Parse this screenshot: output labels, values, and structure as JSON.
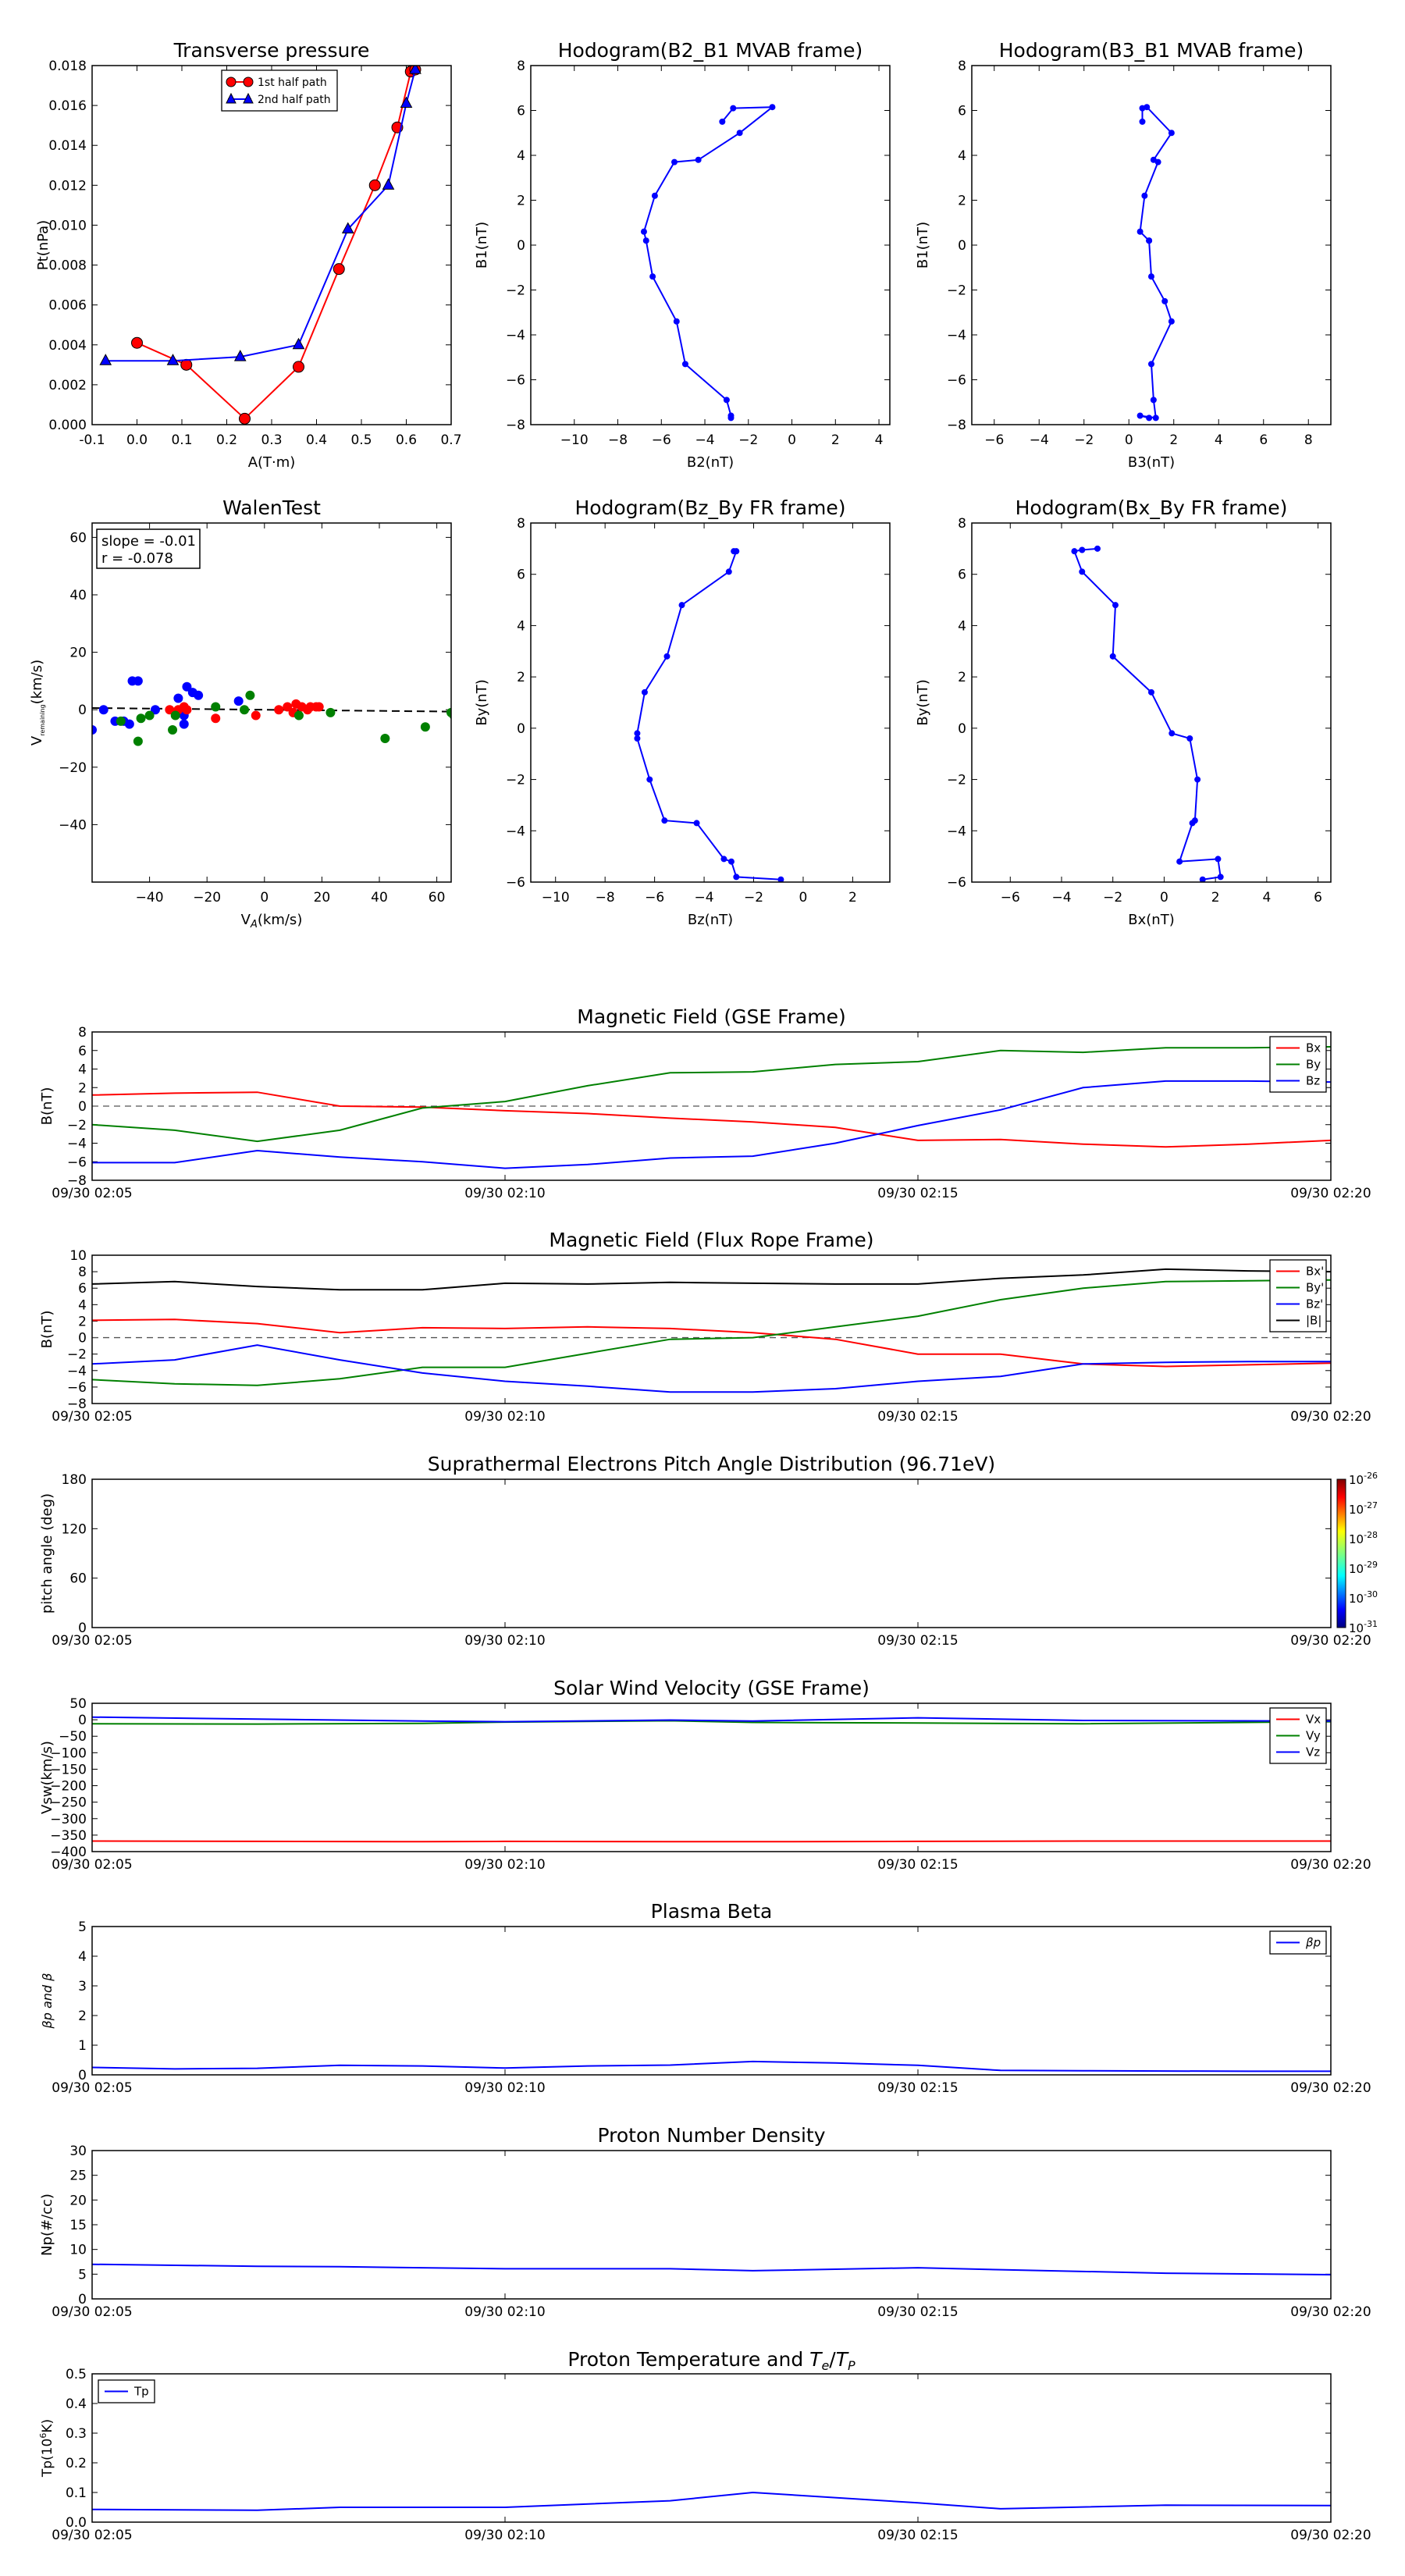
{
  "chart_data": [
    {
      "id": "transverse_pressure",
      "type": "line",
      "title": "Transverse pressure",
      "xlabel": "A(T·m)",
      "ylabel": "Pt(nPa)",
      "xlim": [
        -0.1,
        0.7
      ],
      "ylim": [
        0,
        0.018
      ],
      "xticks": [
        "-0.1",
        "0.0",
        "0.1",
        "0.2",
        "0.3",
        "0.4",
        "0.5",
        "0.6",
        "0.7"
      ],
      "yticks": [
        "0.000",
        "0.002",
        "0.004",
        "0.006",
        "0.008",
        "0.010",
        "0.012",
        "0.014",
        "0.016",
        "0.018"
      ],
      "legend": {
        "position": "top-center",
        "entries": [
          "1st half path",
          "2nd half path"
        ]
      },
      "series": [
        {
          "name": "1st half path",
          "color": "#ff0000",
          "marker": "circle",
          "x": [
            0.0,
            0.11,
            0.24,
            0.36,
            0.45,
            0.53,
            0.58,
            0.61,
            0.62
          ],
          "y": [
            0.0041,
            0.003,
            0.0003,
            0.0029,
            0.0078,
            0.012,
            0.0149,
            0.0177,
            0.0178
          ]
        },
        {
          "name": "2nd half path",
          "color": "#0000ff",
          "marker": "triangle",
          "x": [
            -0.07,
            0.08,
            0.23,
            0.36,
            0.47,
            0.56,
            0.6,
            0.62
          ],
          "y": [
            0.0032,
            0.0032,
            0.0034,
            0.004,
            0.0098,
            0.012,
            0.0161,
            0.0178
          ]
        }
      ]
    },
    {
      "id": "hodo_b2b1",
      "type": "line",
      "title": "Hodogram(B2_B1 MVAB frame)",
      "xlabel": "B2(nT)",
      "ylabel": "B1(nT)",
      "xlim": [
        -12,
        4.5
      ],
      "ylim": [
        -8,
        8
      ],
      "xticks": [
        "−10",
        "−8",
        "−6",
        "−4",
        "−2",
        "0",
        "2",
        "4"
      ],
      "yticks": [
        "−8",
        "−6",
        "−4",
        "−2",
        "0",
        "2",
        "4",
        "6",
        "8"
      ],
      "series": [
        {
          "color": "#0000ff",
          "marker": "dot",
          "x": [
            -3.2,
            -2.7,
            -0.9,
            -2.4,
            -4.3,
            -5.4,
            -6.3,
            -6.8,
            -6.7,
            -6.4,
            -5.3,
            -4.9,
            -3.0,
            -2.8,
            -2.8
          ],
          "y": [
            5.5,
            6.1,
            6.15,
            5.0,
            3.8,
            3.7,
            2.2,
            0.6,
            0.2,
            -1.4,
            -3.4,
            -5.3,
            -6.9,
            -7.6,
            -7.7
          ]
        }
      ]
    },
    {
      "id": "hodo_b3b1",
      "type": "line",
      "title": "Hodogram(B3_B1 MVAB frame)",
      "xlabel": "B3(nT)",
      "ylabel": "B1(nT)",
      "xlim": [
        -7,
        9
      ],
      "ylim": [
        -8,
        8
      ],
      "xticks": [
        "−6",
        "−4",
        "−2",
        "0",
        "2",
        "4",
        "6",
        "8"
      ],
      "yticks": [
        "−8",
        "−6",
        "−4",
        "−2",
        "0",
        "2",
        "4",
        "6",
        "8"
      ],
      "series": [
        {
          "color": "#0000ff",
          "marker": "dot",
          "x": [
            0.6,
            0.6,
            0.8,
            1.9,
            1.1,
            1.3,
            0.7,
            0.5,
            0.9,
            0.9,
            1.0,
            1.6,
            1.9,
            1.0,
            1.1,
            1.2,
            0.5,
            0.9
          ],
          "y": [
            5.5,
            6.1,
            6.15,
            5.0,
            3.8,
            3.7,
            2.2,
            0.6,
            0.2,
            0.2,
            -1.4,
            -2.5,
            -3.4,
            -5.3,
            -6.9,
            -7.7,
            -7.6,
            -7.7
          ]
        }
      ]
    },
    {
      "id": "walen_test",
      "type": "scatter",
      "title": "WalenTest",
      "xlabel": "V_A(km/s)",
      "ylabel": "V_remaining(km/s)",
      "xlim": [
        -60,
        65
      ],
      "ylim": [
        -60,
        65
      ],
      "xticks": [
        "−40",
        "−20",
        "0",
        "20",
        "40",
        "60"
      ],
      "yticks": [
        "−40",
        "−20",
        "0",
        "20",
        "40",
        "60"
      ],
      "annotation": [
        "slope = -0.01",
        "r = -0.078"
      ],
      "fit_line": {
        "slope": -0.01,
        "intercept": 0,
        "color": "#000000",
        "style": "dashed"
      },
      "series": [
        {
          "color": "#0000ff",
          "x": [
            -60,
            -56,
            -52,
            -49,
            -47,
            -46,
            -44,
            -38,
            -30,
            -28,
            -28,
            -27,
            -25,
            -23,
            -9
          ],
          "y": [
            -7,
            0,
            -4,
            -4,
            -5,
            10,
            10,
            0,
            4,
            -2,
            -5,
            8,
            6,
            5,
            3
          ]
        },
        {
          "color": "#ff0000",
          "x": [
            -33,
            -30,
            -28,
            -27,
            -17,
            -3,
            5,
            8,
            10,
            11,
            13,
            15,
            16,
            18,
            19
          ],
          "y": [
            0,
            0,
            1,
            0,
            -3,
            -2,
            0,
            1,
            -1,
            2,
            1,
            0,
            1,
            1,
            1
          ]
        },
        {
          "color": "#008000",
          "x": [
            -50,
            -44,
            -43,
            -40,
            -32,
            -31,
            -17,
            -7,
            -5,
            12,
            23,
            42,
            56,
            65,
            66
          ],
          "y": [
            -4,
            -11,
            -3,
            -2,
            -7,
            -2,
            1,
            0,
            5,
            -2,
            -1,
            -10,
            -6,
            -1,
            -2
          ]
        }
      ]
    },
    {
      "id": "hodo_bzby",
      "type": "line",
      "title": "Hodogram(Bz_By FR frame)",
      "xlabel": "Bz(nT)",
      "ylabel": "By(nT)",
      "xlim": [
        -11,
        3.5
      ],
      "ylim": [
        -6,
        8
      ],
      "xticks": [
        "−10",
        "−8",
        "−6",
        "−4",
        "−2",
        "0",
        "2"
      ],
      "yticks": [
        "−6",
        "−4",
        "−2",
        "0",
        "2",
        "4",
        "6",
        "8"
      ],
      "series": [
        {
          "color": "#0000ff",
          "marker": "dot",
          "x": [
            -2.8,
            -2.7,
            -3.0,
            -4.9,
            -5.5,
            -6.4,
            -6.7,
            -6.7,
            -6.2,
            -5.6,
            -4.3,
            -3.2,
            -2.9,
            -2.7,
            -0.9
          ],
          "y": [
            6.9,
            6.9,
            6.1,
            4.8,
            2.8,
            1.4,
            -0.2,
            -0.4,
            -2.0,
            -3.6,
            -3.7,
            -5.1,
            -5.2,
            -5.8,
            -5.9
          ]
        }
      ]
    },
    {
      "id": "hodo_bxby",
      "type": "line",
      "title": "Hodogram(Bx_By FR frame)",
      "xlabel": "Bx(nT)",
      "ylabel": "By(nT)",
      "xlim": [
        -7.5,
        6.5
      ],
      "ylim": [
        -6,
        8
      ],
      "xticks": [
        "−6",
        "−4",
        "−2",
        "0",
        "2",
        "4",
        "6"
      ],
      "yticks": [
        "−6",
        "−4",
        "−2",
        "0",
        "2",
        "4",
        "6",
        "8"
      ],
      "series": [
        {
          "color": "#0000ff",
          "marker": "dot",
          "x": [
            -2.6,
            -3.2,
            -3.5,
            -3.2,
            -1.9,
            -2.0,
            -0.5,
            0.3,
            1.0,
            1.3,
            1.2,
            1.1,
            0.6,
            2.1,
            2.2,
            1.5
          ],
          "y": [
            7.0,
            6.95,
            6.9,
            6.1,
            4.8,
            2.8,
            1.4,
            -0.2,
            -0.4,
            -2.0,
            -3.6,
            -3.7,
            -5.2,
            -5.1,
            -5.8,
            -5.9
          ]
        }
      ]
    },
    {
      "id": "mag_gse",
      "type": "line",
      "title": "Magnetic Field (GSE Frame)",
      "ylabel": "B(nT)",
      "ylim": [
        -8,
        8
      ],
      "yticks": [
        "−8",
        "−6",
        "−4",
        "−2",
        "0",
        "2",
        "4",
        "6",
        "8"
      ],
      "xticks": [
        "09/30 02:05",
        "09/30 02:10",
        "09/30 02:15",
        "09/30 02:20"
      ],
      "xlim_minutes": [
        5,
        20
      ],
      "zero_line": true,
      "legend": {
        "position": "top-right",
        "entries": [
          "Bx",
          "By",
          "Bz"
        ]
      },
      "x": [
        "02:05",
        "02:06",
        "02:07",
        "02:08",
        "02:09",
        "02:10",
        "02:11",
        "02:12",
        "02:13",
        "02:14",
        "02:15",
        "02:16",
        "02:17",
        "02:18",
        "02:19",
        "02:20"
      ],
      "series": [
        {
          "name": "Bx",
          "color": "#ff0000",
          "values": [
            1.2,
            1.4,
            1.5,
            0.0,
            -0.1,
            -0.5,
            -0.8,
            -1.3,
            -1.7,
            -2.3,
            -3.7,
            -3.6,
            -4.1,
            -4.4,
            -4.1,
            -3.7
          ]
        },
        {
          "name": "By",
          "color": "#008000",
          "values": [
            -2.0,
            -2.6,
            -3.8,
            -2.6,
            -0.2,
            0.5,
            2.2,
            3.6,
            3.7,
            4.5,
            4.8,
            6.0,
            5.8,
            6.3,
            6.3,
            6.4
          ]
        },
        {
          "name": "Bz",
          "color": "#0000ff",
          "values": [
            -6.1,
            -6.1,
            -4.8,
            -5.5,
            -6.0,
            -6.7,
            -6.3,
            -5.6,
            -5.4,
            -4.0,
            -2.1,
            -0.4,
            2.0,
            2.7,
            2.7,
            2.6
          ]
        }
      ]
    },
    {
      "id": "mag_fr",
      "type": "line",
      "title": "Magnetic Field (Flux Rope Frame)",
      "ylabel": "B(nT)",
      "ylim": [
        -8,
        10
      ],
      "yticks": [
        "−8",
        "−6",
        "−4",
        "−2",
        "0",
        "2",
        "4",
        "6",
        "8",
        "10"
      ],
      "xticks": [
        "09/30 02:05",
        "09/30 02:10",
        "09/30 02:15",
        "09/30 02:20"
      ],
      "xlim_minutes": [
        5,
        20
      ],
      "zero_line": true,
      "legend": {
        "position": "top-right",
        "entries": [
          "Bx'",
          "By'",
          "Bz'",
          "|B|"
        ]
      },
      "x": [
        "02:05",
        "02:06",
        "02:07",
        "02:08",
        "02:09",
        "02:10",
        "02:11",
        "02:12",
        "02:13",
        "02:14",
        "02:15",
        "02:16",
        "02:17",
        "02:18",
        "02:19",
        "02:20"
      ],
      "series": [
        {
          "name": "Bx'",
          "color": "#ff0000",
          "values": [
            2.1,
            2.2,
            1.7,
            0.6,
            1.2,
            1.1,
            1.3,
            1.1,
            0.6,
            -0.2,
            -2.0,
            -2.0,
            -3.2,
            -3.5,
            -3.3,
            -3.1
          ]
        },
        {
          "name": "By'",
          "color": "#008000",
          "values": [
            -5.1,
            -5.6,
            -5.8,
            -5.0,
            -3.6,
            -3.6,
            -1.9,
            -0.2,
            0.0,
            1.3,
            2.6,
            4.6,
            6.0,
            6.8,
            6.9,
            7.0
          ]
        },
        {
          "name": "Bz'",
          "color": "#0000ff",
          "values": [
            -3.2,
            -2.7,
            -0.9,
            -2.7,
            -4.3,
            -5.3,
            -5.9,
            -6.6,
            -6.6,
            -6.2,
            -5.3,
            -4.7,
            -3.2,
            -3.0,
            -2.9,
            -2.9
          ]
        },
        {
          "name": "|B|",
          "color": "#000000",
          "values": [
            6.5,
            6.8,
            6.2,
            5.8,
            5.8,
            6.6,
            6.5,
            6.7,
            6.6,
            6.5,
            6.5,
            7.2,
            7.6,
            8.3,
            8.1,
            8.0
          ]
        }
      ]
    },
    {
      "id": "pitch_angle",
      "type": "heatmap",
      "title": "Suprathermal Electrons Pitch Angle Distribution (96.71eV)",
      "ylabel": "pitch angle (deg)",
      "ylim": [
        0,
        180
      ],
      "yticks": [
        "0",
        "60",
        "120",
        "180"
      ],
      "xticks": [
        "09/30 02:05",
        "09/30 02:10",
        "09/30 02:15",
        "09/30 02:20"
      ],
      "colorbar": {
        "exponents": [
          "-31",
          "-30",
          "-29",
          "-28",
          "-27",
          "-26"
        ],
        "base": "10"
      }
    },
    {
      "id": "sw_velocity",
      "type": "line",
      "title": "Solar Wind Velocity (GSE Frame)",
      "ylabel": "Vsw(km/s)",
      "ylim": [
        -400,
        50
      ],
      "yticks": [
        "−400",
        "−350",
        "−300",
        "−250",
        "−200",
        "−150",
        "−100",
        "−50",
        "0",
        "50"
      ],
      "xticks": [
        "09/30 02:05",
        "09/30 02:10",
        "09/30 02:15",
        "09/30 02:20"
      ],
      "xlim_minutes": [
        5,
        20
      ],
      "legend": {
        "position": "top-right",
        "entries": [
          "Vx",
          "Vy",
          "Vz"
        ]
      },
      "x": [
        "02:05",
        "02:07",
        "02:09",
        "02:10",
        "02:12",
        "02:13",
        "02:15",
        "02:17",
        "02:20"
      ],
      "series": [
        {
          "name": "Vx",
          "color": "#ff0000",
          "values": [
            -368,
            -369,
            -370,
            -369,
            -370,
            -370,
            -369,
            -368,
            -368
          ]
        },
        {
          "name": "Vy",
          "color": "#008000",
          "values": [
            -12,
            -13,
            -11,
            -7,
            -3,
            -8,
            -10,
            -12,
            -6
          ]
        },
        {
          "name": "Vz",
          "color": "#0000ff",
          "values": [
            8,
            2,
            -4,
            -6,
            -1,
            -4,
            6,
            -2,
            -4
          ]
        }
      ]
    },
    {
      "id": "plasma_beta",
      "type": "line",
      "title": "Plasma Beta",
      "ylabel": "βp and β",
      "ylim": [
        0,
        5
      ],
      "yticks": [
        "0",
        "1",
        "2",
        "3",
        "4",
        "5"
      ],
      "xticks": [
        "09/30 02:05",
        "09/30 02:10",
        "09/30 02:15",
        "09/30 02:20"
      ],
      "xlim_minutes": [
        5,
        20
      ],
      "legend": {
        "position": "top-right",
        "entries": [
          "βp"
        ]
      },
      "x": [
        "02:05",
        "02:06",
        "02:07",
        "02:08",
        "02:09",
        "02:10",
        "02:11",
        "02:12",
        "02:13",
        "02:14",
        "02:15",
        "02:16",
        "02:17",
        "02:18",
        "02:19",
        "02:20"
      ],
      "series": [
        {
          "name": "βp",
          "color": "#0000ff",
          "values": [
            0.25,
            0.2,
            0.22,
            0.32,
            0.3,
            0.23,
            0.3,
            0.33,
            0.45,
            0.4,
            0.32,
            0.15,
            0.14,
            0.13,
            0.12,
            0.12
          ]
        }
      ]
    },
    {
      "id": "proton_density",
      "type": "line",
      "title": "Proton Number Density",
      "ylabel": "Np(#/cc)",
      "ylim": [
        0,
        30
      ],
      "yticks": [
        "0",
        "5",
        "10",
        "15",
        "20",
        "25",
        "30"
      ],
      "xticks": [
        "09/30 02:05",
        "09/30 02:10",
        "09/30 02:15",
        "09/30 02:20"
      ],
      "xlim_minutes": [
        5,
        20
      ],
      "x": [
        "02:05",
        "02:07",
        "02:08",
        "02:10",
        "02:12",
        "02:13",
        "02:15",
        "02:16",
        "02:18",
        "02:20"
      ],
      "series": [
        {
          "color": "#0000ff",
          "values": [
            7.0,
            6.6,
            6.5,
            6.1,
            6.1,
            5.7,
            6.3,
            5.9,
            5.2,
            4.9
          ]
        }
      ]
    },
    {
      "id": "proton_temperature",
      "type": "line",
      "title": "Proton Temperature and Te/Tp",
      "ylabel": "Tp(10^6K)",
      "ylim": [
        0,
        0.5
      ],
      "yticks": [
        "0.0",
        "0.1",
        "0.2",
        "0.3",
        "0.4",
        "0.5"
      ],
      "xticks": [
        "09/30 02:05",
        "09/30 02:10",
        "09/30 02:15",
        "09/30 02:20"
      ],
      "xlim_minutes": [
        5,
        20
      ],
      "legend": {
        "position": "top-left",
        "entries": [
          "Tp"
        ]
      },
      "x": [
        "02:05",
        "02:07",
        "02:08",
        "02:10",
        "02:12",
        "02:13",
        "02:15",
        "02:16",
        "02:18",
        "02:20"
      ],
      "series": [
        {
          "name": "Tp",
          "color": "#0000ff",
          "values": [
            0.043,
            0.04,
            0.05,
            0.05,
            0.072,
            0.1,
            0.065,
            0.045,
            0.057,
            0.056
          ]
        }
      ]
    }
  ]
}
